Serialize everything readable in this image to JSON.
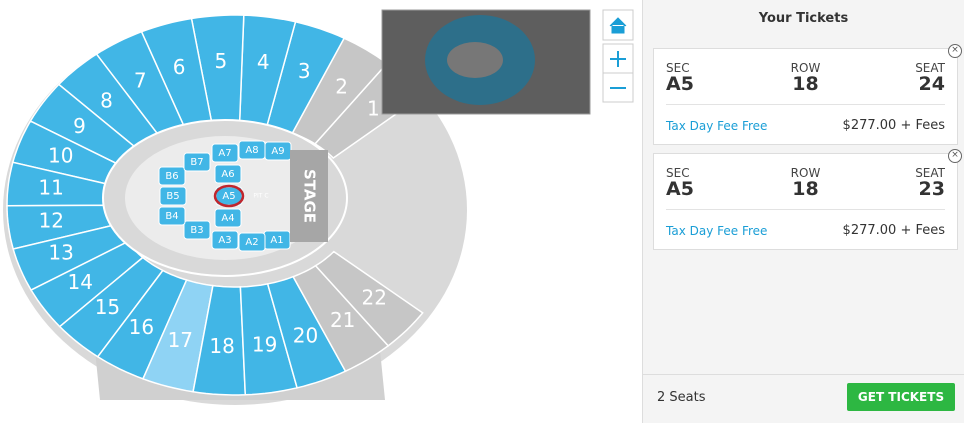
{
  "map": {
    "sections": [
      "1",
      "2",
      "3",
      "4",
      "5",
      "6",
      "7",
      "8",
      "9",
      "10",
      "11",
      "12",
      "13",
      "14",
      "15",
      "16",
      "17",
      "18",
      "19",
      "20",
      "21",
      "22"
    ],
    "floor_sections": [
      "A1",
      "A2",
      "A3",
      "A4",
      "A5",
      "A6",
      "A7",
      "A8",
      "A9",
      "B3",
      "B4",
      "B5",
      "B6",
      "B7"
    ],
    "stage": "STAGE",
    "pit": "PIT C"
  },
  "panel": {
    "title": "Your Tickets",
    "tickets": [
      {
        "sec_label": "SEC",
        "sec": "A5",
        "row_label": "ROW",
        "row": 18,
        "seat_label": "SEAT",
        "seat": 24,
        "promo": "Tax Day Fee Free",
        "price": "$277.00 + Fees"
      },
      {
        "sec_label": "SEC",
        "sec": "A5",
        "row_label": "ROW",
        "row": 18,
        "seat_label": "SEAT",
        "seat": 23,
        "promo": "Tax Day Fee Free",
        "price": "$277.00 + Fees"
      }
    ],
    "seat_count": "2 Seats",
    "button": "GET TICKETS"
  }
}
